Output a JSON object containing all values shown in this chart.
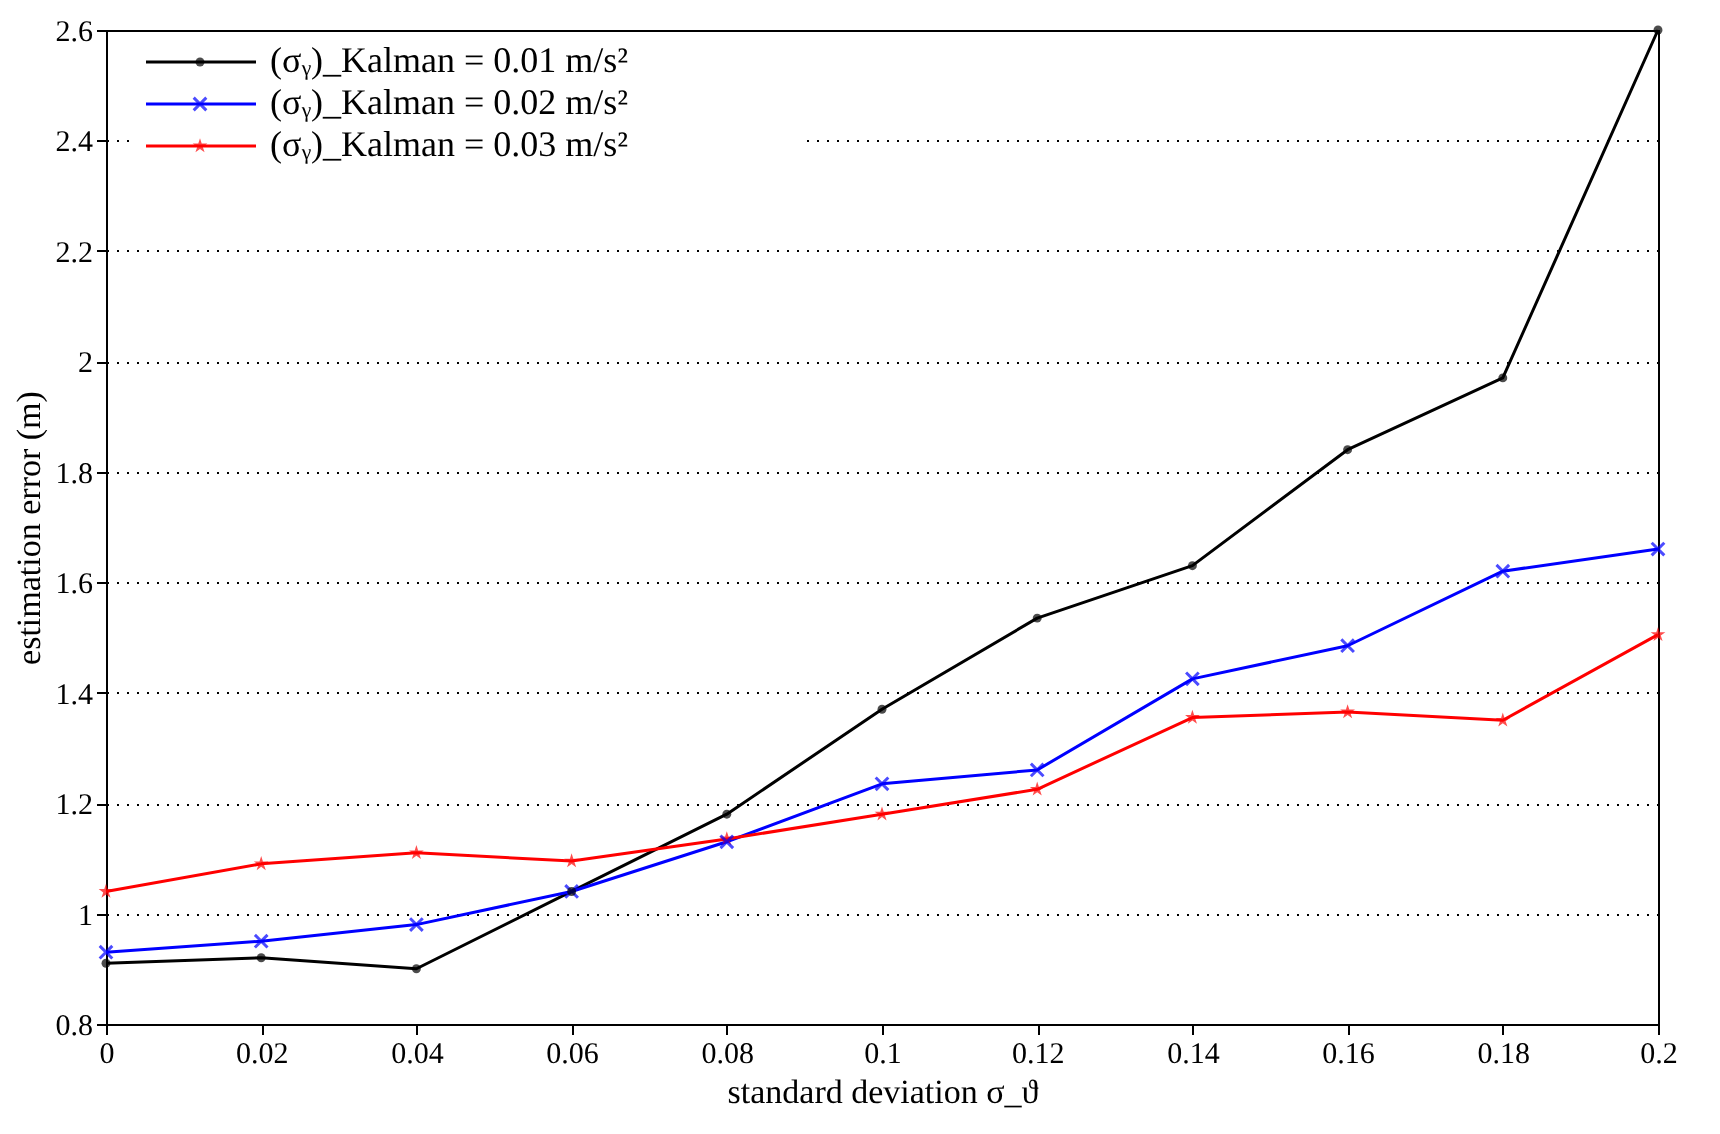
{
  "chart_data": {
    "type": "line",
    "xlabel": "standard deviation σ_ϑ",
    "ylabel": "estimation error (m)",
    "x": [
      0,
      0.02,
      0.04,
      0.06,
      0.08,
      0.1,
      0.12,
      0.14,
      0.16,
      0.18,
      0.2
    ],
    "series": [
      {
        "name": "(σᵧ)_Kalman = 0.01 m/s²",
        "color": "#000000",
        "marker": "circle",
        "values": [
          0.91,
          0.92,
          0.9,
          1.04,
          1.18,
          1.37,
          1.535,
          1.63,
          1.84,
          1.97,
          2.6
        ]
      },
      {
        "name": "(σᵧ)_Kalman = 0.02 m/s²",
        "color": "#0000ff",
        "marker": "cross",
        "values": [
          0.93,
          0.95,
          0.98,
          1.04,
          1.13,
          1.235,
          1.26,
          1.425,
          1.485,
          1.62,
          1.66
        ]
      },
      {
        "name": "(σᵧ)_Kalman = 0.03 m/s²",
        "color": "#ff0000",
        "marker": "star",
        "values": [
          1.04,
          1.09,
          1.11,
          1.095,
          1.135,
          1.18,
          1.225,
          1.355,
          1.365,
          1.35,
          1.505
        ]
      }
    ],
    "xlim": [
      0,
      0.2
    ],
    "xticks": [
      0,
      0.02,
      0.04,
      0.06,
      0.08,
      0.1,
      0.12,
      0.14,
      0.16,
      0.18,
      0.2
    ],
    "ylim": [
      0.8,
      2.6
    ],
    "yticks": [
      0.8,
      1,
      1.2,
      1.4,
      1.6,
      1.8,
      2,
      2.2,
      2.4,
      2.6
    ],
    "grid": "y",
    "legend": "top left",
    "line_style": "solid"
  }
}
